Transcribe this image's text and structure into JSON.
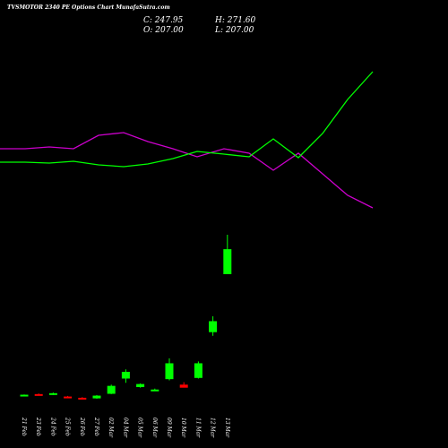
{
  "header": {
    "title": "TVSMOTOR 2340  PE Options  Chart MunafaSutra.com",
    "close": "C: 247.95",
    "high": "H: 271.60",
    "open": "O: 207.00",
    "low": "L: 207.00"
  },
  "colors": {
    "background": "#000000",
    "up": "#00ff00",
    "down": "#ff0000",
    "line_green": "#00ff00",
    "line_magenta": "#cc00cc",
    "text": "#ffffff"
  },
  "chart_data": {
    "type": "candlestick",
    "categories": [
      "21 Feb",
      "23 Feb",
      "24 Feb",
      "25 Feb",
      "26 Feb",
      "27 Feb",
      "02 Mar",
      "04 Mar",
      "05 Mar",
      "06 Mar",
      "09 Mar",
      "10 Mar",
      "11 Mar",
      "12 Mar",
      "13 Mar"
    ],
    "ylim": [
      0,
      280
    ],
    "candles": [
      {
        "open": 9.0,
        "high": 10.0,
        "low": 8.0,
        "close": 9.5
      },
      {
        "open": 10.5,
        "high": 11.5,
        "low": 9.5,
        "close": 9.8
      },
      {
        "open": 10.0,
        "high": 13.0,
        "low": 9.0,
        "close": 12.0
      },
      {
        "open": 6.5,
        "high": 7.5,
        "low": 5.0,
        "close": 5.5
      },
      {
        "open": 4.5,
        "high": 5.5,
        "low": 3.0,
        "close": 4.0
      },
      {
        "open": 3.5,
        "high": 9.0,
        "low": 3.0,
        "close": 8.0
      },
      {
        "open": 11.0,
        "high": 26.0,
        "low": 10.5,
        "close": 24.0
      },
      {
        "open": 36.0,
        "high": 51.0,
        "low": 29.0,
        "close": 47.0
      },
      {
        "open": 22.0,
        "high": 28.0,
        "low": 21.0,
        "close": 27.0
      },
      {
        "open": 17.5,
        "high": 19.5,
        "low": 17.0,
        "close": 18.0
      },
      {
        "open": 35.0,
        "high": 69.0,
        "low": 33.0,
        "close": 61.0
      },
      {
        "open": 26.0,
        "high": 30.0,
        "low": 22.0,
        "close": 21.0
      },
      {
        "open": 37.0,
        "high": 64.0,
        "low": 36.0,
        "close": 61.0
      },
      {
        "open": 112.0,
        "high": 138.0,
        "low": 106.0,
        "close": 130.0
      },
      {
        "open": 207.0,
        "high": 271.6,
        "low": 207.0,
        "close": 247.95
      }
    ],
    "overlay_lines": [
      {
        "color": "#cc00cc",
        "points": [
          [
            0,
            166
          ],
          [
            28,
            166
          ],
          [
            55,
            164
          ],
          [
            82,
            166
          ],
          [
            110,
            151
          ],
          [
            138,
            148
          ],
          [
            165,
            158
          ],
          [
            193,
            166
          ],
          [
            220,
            175
          ],
          [
            250,
            166
          ],
          [
            278,
            171
          ],
          [
            305,
            190
          ],
          [
            333,
            171
          ],
          [
            360,
            194
          ],
          [
            388,
            218
          ],
          [
            416,
            232
          ]
        ]
      },
      {
        "color": "#00ff00",
        "points": [
          [
            0,
            181
          ],
          [
            28,
            181
          ],
          [
            55,
            182
          ],
          [
            82,
            180
          ],
          [
            110,
            184
          ],
          [
            138,
            186
          ],
          [
            165,
            183
          ],
          [
            193,
            177
          ],
          [
            220,
            169
          ],
          [
            250,
            172
          ],
          [
            278,
            175
          ],
          [
            305,
            155
          ],
          [
            333,
            176
          ],
          [
            360,
            149
          ],
          [
            388,
            111
          ],
          [
            416,
            80
          ]
        ]
      }
    ]
  }
}
